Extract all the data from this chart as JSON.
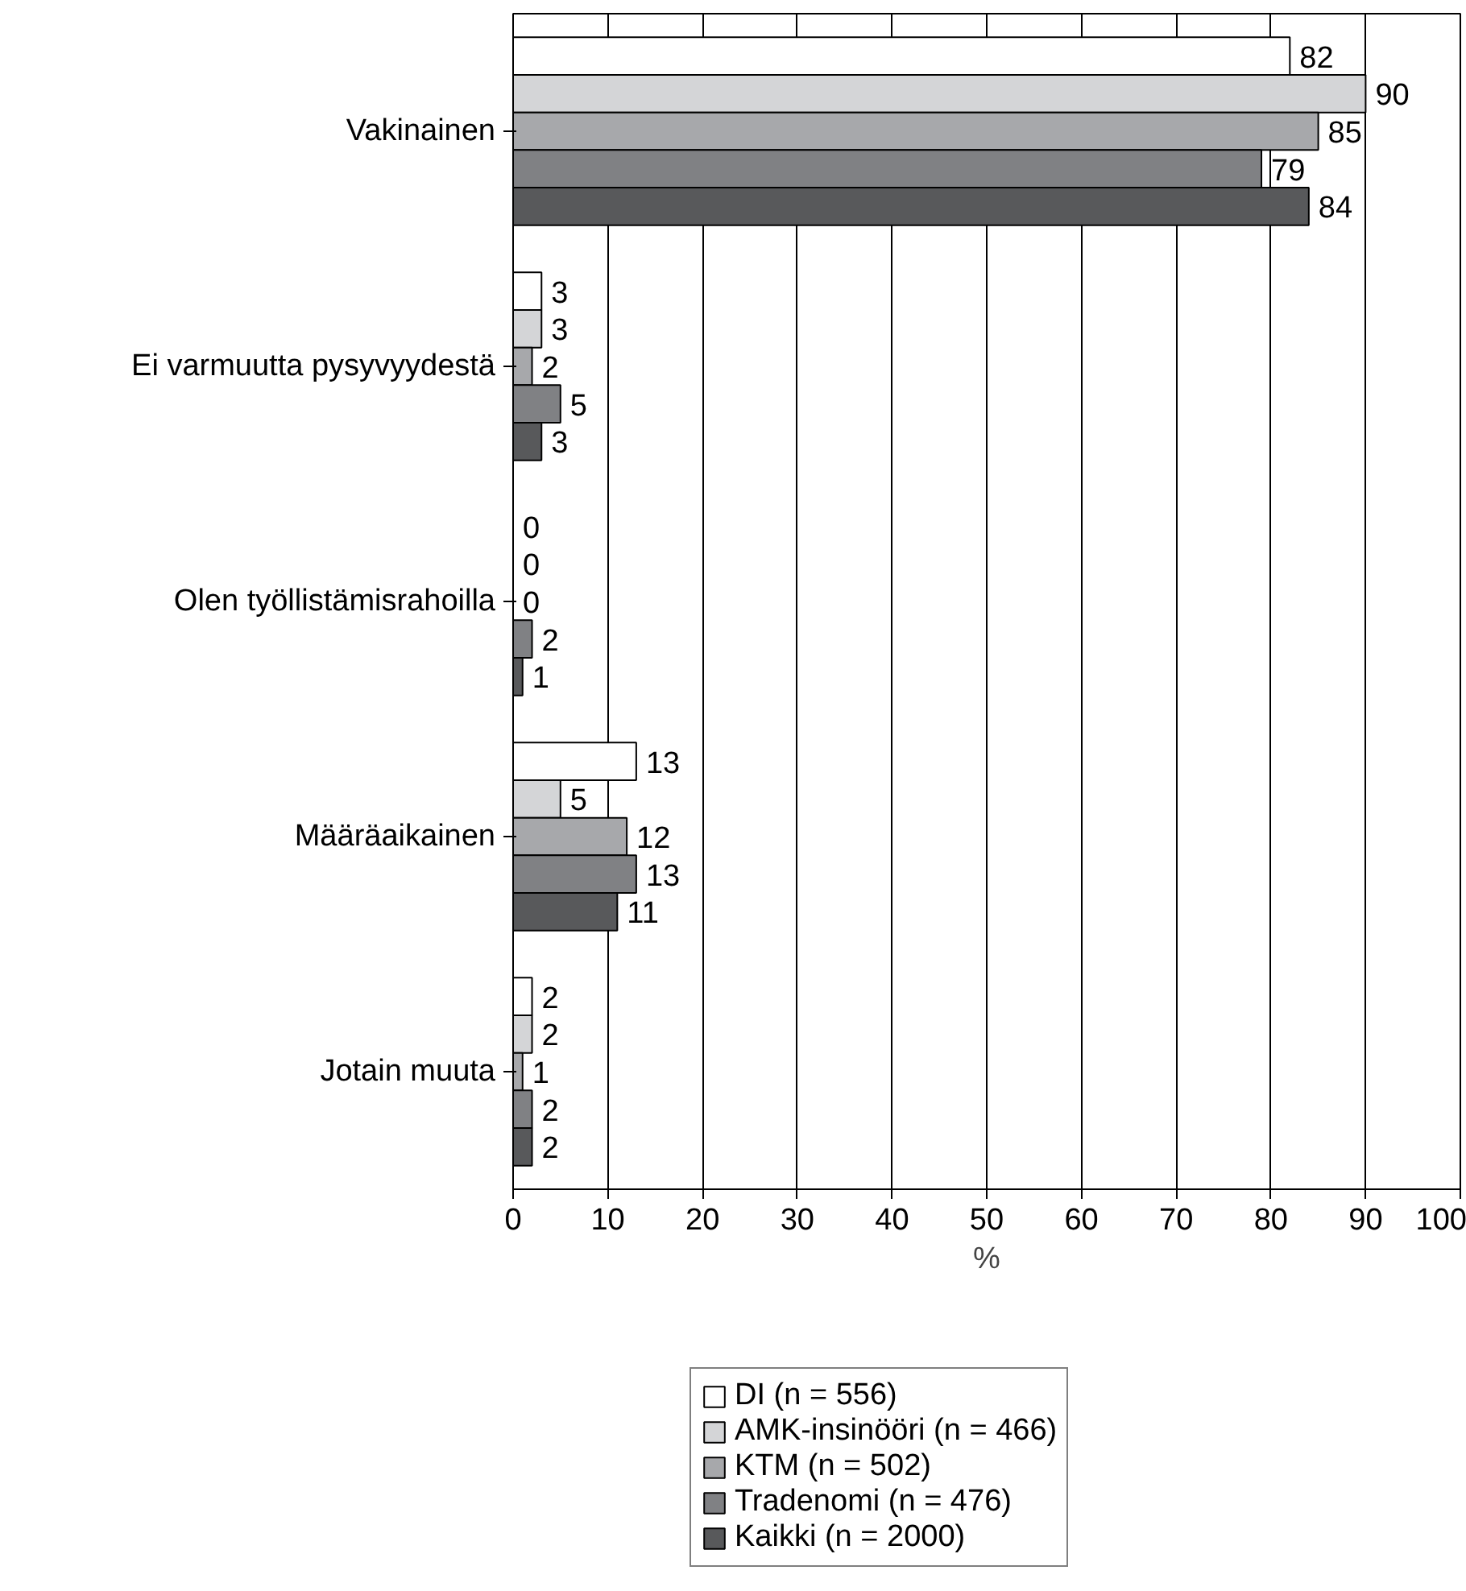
{
  "chart_data": {
    "type": "bar",
    "orientation": "horizontal",
    "xlabel": "%",
    "categories": [
      "Vakinainen",
      "Ei varmuutta pysyvyydestä",
      "Olen työllistämisrahoilla",
      "Määräaikainen",
      "Jotain muuta"
    ],
    "series": [
      {
        "name": "DI (n = 556)",
        "color": "#ffffff",
        "values": [
          82,
          3,
          0,
          13,
          2
        ]
      },
      {
        "name": "AMK-insinööri (n = 466)",
        "color": "#d4d5d7",
        "values": [
          90,
          3,
          0,
          5,
          2
        ]
      },
      {
        "name": "KTM (n = 502)",
        "color": "#a7a8ab",
        "values": [
          85,
          2,
          0,
          12,
          1
        ]
      },
      {
        "name": "Tradenomi (n = 476)",
        "color": "#808184",
        "values": [
          79,
          5,
          2,
          13,
          2
        ]
      },
      {
        "name": "Kaikki (n = 2000)",
        "color": "#58595b",
        "values": [
          84,
          3,
          1,
          11,
          2
        ]
      }
    ],
    "xlim": [
      0,
      100
    ],
    "xticks": [
      0,
      10,
      20,
      30,
      40,
      50,
      60,
      70,
      80,
      90,
      100
    ],
    "grid": "x",
    "data_labels": true,
    "legend": "bottom"
  }
}
